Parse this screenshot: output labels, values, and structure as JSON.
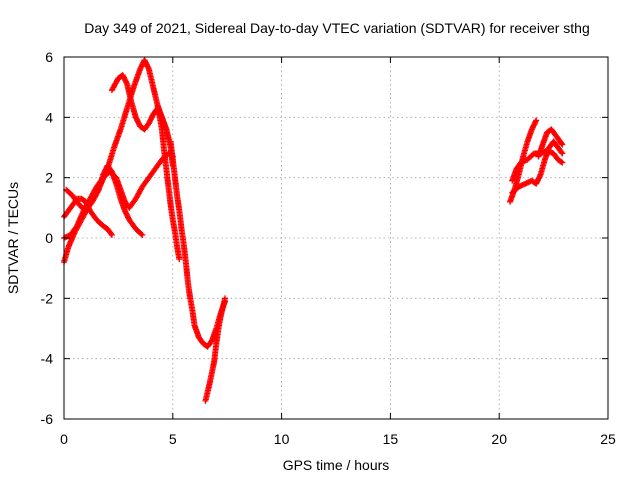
{
  "chart_data": {
    "type": "scatter",
    "title": "Day 349 of 2021, Sidereal Day-to-day VTEC variation (SDTVAR) for receiver sthg",
    "xlabel": "GPS time / hours",
    "ylabel": "SDTVAR / TECUs",
    "xlim": [
      0,
      25
    ],
    "ylim": [
      -6,
      6
    ],
    "xticks": [
      0,
      5,
      10,
      15,
      20,
      25
    ],
    "yticks": [
      -6,
      -4,
      -2,
      0,
      2,
      4,
      6
    ],
    "grid": true,
    "marker": "+",
    "color": "#ff0000",
    "tracks": [
      [
        [
          0.0,
          -0.8
        ],
        [
          0.2,
          -0.3
        ],
        [
          0.5,
          0.2
        ],
        [
          0.8,
          0.6
        ],
        [
          1.1,
          1.0
        ],
        [
          1.4,
          1.4
        ],
        [
          1.7,
          1.8
        ],
        [
          2.0,
          2.3
        ],
        [
          2.3,
          3.0
        ],
        [
          2.6,
          3.6
        ],
        [
          2.9,
          4.3
        ],
        [
          3.2,
          5.0
        ],
        [
          3.5,
          5.6
        ],
        [
          3.7,
          5.9
        ],
        [
          3.9,
          5.6
        ],
        [
          4.1,
          5.0
        ],
        [
          4.3,
          4.4
        ],
        [
          4.5,
          4.0
        ],
        [
          4.7,
          3.6
        ],
        [
          4.9,
          3.0
        ],
        [
          5.0,
          2.4
        ]
      ],
      [
        [
          2.2,
          4.9
        ],
        [
          2.5,
          5.3
        ],
        [
          2.7,
          5.4
        ],
        [
          2.9,
          5.1
        ],
        [
          3.1,
          4.5
        ],
        [
          3.3,
          4.0
        ],
        [
          3.5,
          3.7
        ],
        [
          3.7,
          3.6
        ],
        [
          3.9,
          3.8
        ],
        [
          4.1,
          4.1
        ],
        [
          4.3,
          4.3
        ],
        [
          4.5,
          4.0
        ],
        [
          4.7,
          3.6
        ],
        [
          4.8,
          3.3
        ]
      ],
      [
        [
          0.0,
          0.0
        ],
        [
          0.3,
          0.1
        ],
        [
          0.6,
          0.4
        ],
        [
          0.9,
          0.9
        ],
        [
          1.2,
          1.3
        ],
        [
          1.5,
          1.7
        ],
        [
          1.8,
          2.0
        ],
        [
          2.1,
          2.2
        ],
        [
          2.4,
          2.0
        ],
        [
          2.6,
          1.6
        ],
        [
          2.8,
          1.2
        ],
        [
          3.0,
          1.0
        ],
        [
          3.3,
          1.3
        ],
        [
          3.6,
          1.7
        ],
        [
          3.9,
          2.0
        ],
        [
          4.2,
          2.3
        ],
        [
          4.5,
          2.6
        ],
        [
          4.8,
          2.8
        ],
        [
          5.0,
          2.7
        ]
      ],
      [
        [
          0.0,
          0.7
        ],
        [
          0.2,
          0.9
        ],
        [
          0.4,
          1.1
        ],
        [
          0.6,
          1.3
        ],
        [
          0.8,
          1.3
        ],
        [
          1.0,
          1.2
        ],
        [
          1.2,
          0.9
        ],
        [
          1.5,
          0.6
        ],
        [
          1.8,
          0.4
        ],
        [
          2.0,
          0.3
        ],
        [
          2.2,
          0.1
        ]
      ],
      [
        [
          0.1,
          1.6
        ],
        [
          0.4,
          1.4
        ],
        [
          0.7,
          1.1
        ],
        [
          1.0,
          0.9
        ],
        [
          1.3,
          1.2
        ],
        [
          1.6,
          1.6
        ],
        [
          1.8,
          2.1
        ],
        [
          2.0,
          2.4
        ],
        [
          2.2,
          2.2
        ],
        [
          2.4,
          1.8
        ],
        [
          2.6,
          1.3
        ],
        [
          2.8,
          0.9
        ],
        [
          3.0,
          0.6
        ],
        [
          3.3,
          0.3
        ],
        [
          3.6,
          0.1
        ]
      ],
      [
        [
          4.3,
          4.4
        ],
        [
          4.5,
          3.6
        ],
        [
          4.6,
          2.9
        ],
        [
          4.7,
          2.3
        ],
        [
          4.8,
          1.7
        ],
        [
          4.9,
          1.1
        ],
        [
          5.0,
          0.6
        ],
        [
          5.1,
          0.2
        ],
        [
          5.2,
          -0.3
        ],
        [
          5.3,
          -0.7
        ]
      ],
      [
        [
          4.9,
          3.2
        ],
        [
          5.0,
          2.6
        ],
        [
          5.1,
          2.0
        ],
        [
          5.2,
          1.4
        ],
        [
          5.3,
          0.9
        ],
        [
          5.4,
          0.3
        ],
        [
          5.5,
          -0.2
        ],
        [
          5.6,
          -0.8
        ],
        [
          5.7,
          -1.5
        ],
        [
          5.8,
          -2.0
        ],
        [
          5.9,
          -2.4
        ],
        [
          6.0,
          -2.9
        ],
        [
          6.2,
          -3.3
        ],
        [
          6.4,
          -3.5
        ],
        [
          6.6,
          -3.6
        ],
        [
          6.8,
          -3.4
        ],
        [
          7.0,
          -3.0
        ],
        [
          7.2,
          -2.5
        ],
        [
          7.4,
          -2.1
        ]
      ],
      [
        [
          6.5,
          -5.4
        ],
        [
          6.7,
          -4.8
        ],
        [
          6.9,
          -4.1
        ],
        [
          7.0,
          -3.5
        ],
        [
          7.1,
          -3.0
        ],
        [
          7.2,
          -2.6
        ],
        [
          7.3,
          -2.3
        ],
        [
          7.4,
          -2.0
        ]
      ],
      [
        [
          20.5,
          1.2
        ],
        [
          20.7,
          1.6
        ],
        [
          20.9,
          2.1
        ],
        [
          21.1,
          2.7
        ],
        [
          21.3,
          3.2
        ],
        [
          21.5,
          3.6
        ],
        [
          21.7,
          3.9
        ]
      ],
      [
        [
          20.6,
          1.9
        ],
        [
          20.8,
          2.3
        ],
        [
          21.0,
          2.5
        ],
        [
          21.3,
          2.6
        ],
        [
          21.6,
          2.8
        ],
        [
          21.9,
          2.8
        ],
        [
          22.2,
          2.9
        ],
        [
          22.5,
          2.8
        ],
        [
          22.7,
          2.6
        ],
        [
          22.9,
          2.5
        ]
      ],
      [
        [
          20.6,
          1.5
        ],
        [
          20.9,
          1.7
        ],
        [
          21.2,
          1.8
        ],
        [
          21.5,
          1.9
        ],
        [
          21.7,
          1.8
        ],
        [
          21.9,
          2.1
        ],
        [
          22.1,
          2.6
        ],
        [
          22.3,
          3.0
        ],
        [
          22.5,
          3.2
        ],
        [
          22.7,
          3.0
        ],
        [
          22.9,
          2.8
        ]
      ],
      [
        [
          21.8,
          2.7
        ],
        [
          22.0,
          3.1
        ],
        [
          22.2,
          3.5
        ],
        [
          22.4,
          3.6
        ],
        [
          22.6,
          3.4
        ],
        [
          22.8,
          3.2
        ],
        [
          22.9,
          3.1
        ]
      ]
    ]
  }
}
